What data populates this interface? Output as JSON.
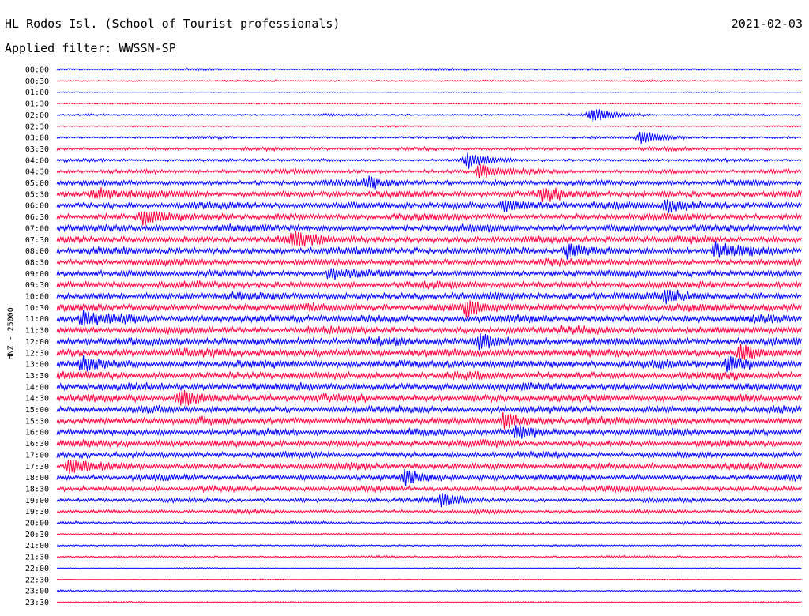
{
  "header": {
    "station": "HL Rodos Isl. (School of Tourist professionals)",
    "date": "2021-02-03",
    "filter": "Applied filter: WWSSN-SP"
  },
  "chart_data": {
    "type": "line",
    "title": "HL Rodos Isl. (School of Tourist professionals)",
    "ylabel": "HNZ - 25000",
    "colors": [
      "#0000ff",
      "#ff0040"
    ],
    "rows": [
      "00:00",
      "00:30",
      "01:00",
      "01:30",
      "02:00",
      "02:30",
      "03:00",
      "03:30",
      "04:00",
      "04:30",
      "05:00",
      "05:30",
      "06:00",
      "06:30",
      "07:00",
      "07:30",
      "08:00",
      "08:30",
      "09:00",
      "09:30",
      "10:00",
      "10:30",
      "11:00",
      "11:30",
      "12:00",
      "12:30",
      "13:00",
      "13:30",
      "14:00",
      "14:30",
      "15:00",
      "15:30",
      "16:00",
      "16:30",
      "17:00",
      "17:30",
      "18:00",
      "18:30",
      "19:00",
      "19:30",
      "20:00",
      "20:30",
      "21:00",
      "21:30",
      "22:00",
      "22:30",
      "23:00",
      "23:30"
    ],
    "noise_level": [
      1.2,
      1.0,
      0.5,
      0.8,
      1.3,
      0.9,
      1.5,
      2.0,
      1.8,
      2.5,
      3.2,
      4.0,
      4.2,
      4.0,
      4.3,
      4.2,
      4.3,
      4.0,
      4.0,
      4.2,
      4.5,
      4.5,
      4.6,
      4.6,
      4.8,
      4.8,
      4.8,
      4.6,
      4.6,
      4.5,
      4.3,
      4.4,
      4.2,
      4.0,
      3.8,
      3.8,
      3.6,
      3.2,
      2.8,
      2.2,
      1.6,
      1.2,
      1.0,
      1.3,
      0.6,
      0.5,
      1.0,
      0.8
    ],
    "events": [
      {
        "row": 4,
        "minute": 21.5,
        "amp": 10
      },
      {
        "row": 6,
        "minute": 23.5,
        "amp": 9
      },
      {
        "row": 8,
        "minute": 16.5,
        "amp": 10
      },
      {
        "row": 9,
        "minute": 17.0,
        "amp": 9
      },
      {
        "row": 10,
        "minute": 12.5,
        "amp": 7
      },
      {
        "row": 11,
        "minute": 1.5,
        "amp": 8
      },
      {
        "row": 11,
        "minute": 19.5,
        "amp": 8
      },
      {
        "row": 12,
        "minute": 18.0,
        "amp": 8
      },
      {
        "row": 12,
        "minute": 24.5,
        "amp": 9
      },
      {
        "row": 13,
        "minute": 3.5,
        "amp": 9
      },
      {
        "row": 15,
        "minute": 9.5,
        "amp": 8
      },
      {
        "row": 16,
        "minute": 20.5,
        "amp": 9
      },
      {
        "row": 16,
        "minute": 26.5,
        "amp": 9
      },
      {
        "row": 18,
        "minute": 11.0,
        "amp": 6
      },
      {
        "row": 20,
        "minute": 24.5,
        "amp": 8
      },
      {
        "row": 21,
        "minute": 16.5,
        "amp": 9
      },
      {
        "row": 22,
        "minute": 1.0,
        "amp": 8
      },
      {
        "row": 24,
        "minute": 17.0,
        "amp": 9
      },
      {
        "row": 25,
        "minute": 27.5,
        "amp": 9
      },
      {
        "row": 26,
        "minute": 1.0,
        "amp": 9
      },
      {
        "row": 26,
        "minute": 27.0,
        "amp": 9
      },
      {
        "row": 29,
        "minute": 5.0,
        "amp": 9
      },
      {
        "row": 31,
        "minute": 18.0,
        "amp": 9
      },
      {
        "row": 32,
        "minute": 18.5,
        "amp": 9
      },
      {
        "row": 35,
        "minute": 0.5,
        "amp": 9
      },
      {
        "row": 36,
        "minute": 14.0,
        "amp": 9
      },
      {
        "row": 38,
        "minute": 15.5,
        "amp": 8
      }
    ]
  }
}
